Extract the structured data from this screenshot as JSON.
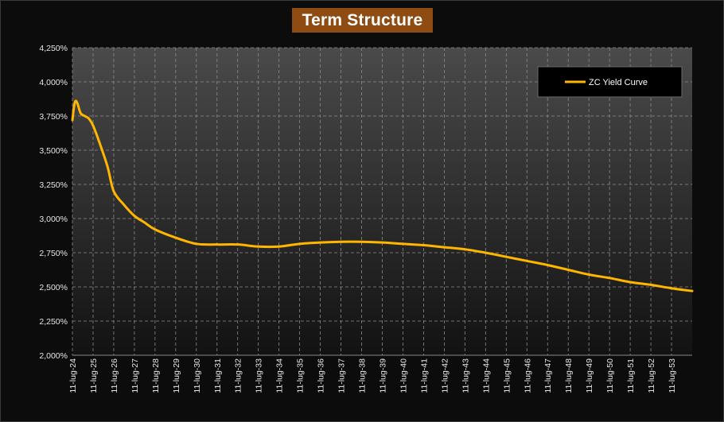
{
  "chart_data": {
    "type": "line",
    "title": "Term Structure",
    "xlabel": "",
    "ylabel": "",
    "ylim": [
      2.0,
      4.25
    ],
    "y_ticks": [
      "2,000%",
      "2,250%",
      "2,500%",
      "2,750%",
      "3,000%",
      "3,250%",
      "3,500%",
      "3,750%",
      "4,000%",
      "4,250%"
    ],
    "x_ticks": [
      "11-lug-24",
      "11-lug-25",
      "11-lug-26",
      "11-lug-27",
      "11-lug-28",
      "11-lug-29",
      "11-lug-30",
      "11-lug-31",
      "11-lug-32",
      "11-lug-33",
      "11-lug-34",
      "11-lug-35",
      "11-lug-36",
      "11-lug-37",
      "11-lug-38",
      "11-lug-39",
      "11-lug-40",
      "11-lug-41",
      "11-lug-42",
      "11-lug-43",
      "11-lug-44",
      "11-lug-45",
      "11-lug-46",
      "11-lug-47",
      "11-lug-48",
      "11-lug-49",
      "11-lug-50",
      "11-lug-51",
      "11-lug-52",
      "11-lug-53"
    ],
    "xlim": [
      2024.0,
      2054.0
    ],
    "grid": true,
    "legend_position": "top-right",
    "line_color": "#ffb600",
    "series": [
      {
        "name": "ZC Yield Curve",
        "x": [
          2024.0,
          2024.08,
          2024.15,
          2024.25,
          2024.4,
          2024.6,
          2024.8,
          2025.0,
          2025.3,
          2025.7,
          2026.0,
          2026.5,
          2027.0,
          2027.5,
          2028.0,
          2029.0,
          2030.0,
          2031.0,
          2032.0,
          2033.0,
          2034.0,
          2035.0,
          2036.0,
          2037.0,
          2038.0,
          2039.0,
          2040.0,
          2041.0,
          2042.0,
          2043.0,
          2044.0,
          2045.0,
          2046.0,
          2047.0,
          2048.0,
          2049.0,
          2050.0,
          2051.0,
          2052.0,
          2053.0,
          2054.0
        ],
        "y": [
          3.72,
          3.82,
          3.86,
          3.84,
          3.77,
          3.75,
          3.73,
          3.68,
          3.56,
          3.38,
          3.2,
          3.1,
          3.02,
          2.97,
          2.92,
          2.86,
          2.815,
          2.81,
          2.81,
          2.795,
          2.795,
          2.815,
          2.825,
          2.83,
          2.83,
          2.825,
          2.815,
          2.805,
          2.79,
          2.775,
          2.75,
          2.72,
          2.69,
          2.66,
          2.625,
          2.59,
          2.565,
          2.535,
          2.515,
          2.49,
          2.47
        ]
      }
    ]
  }
}
